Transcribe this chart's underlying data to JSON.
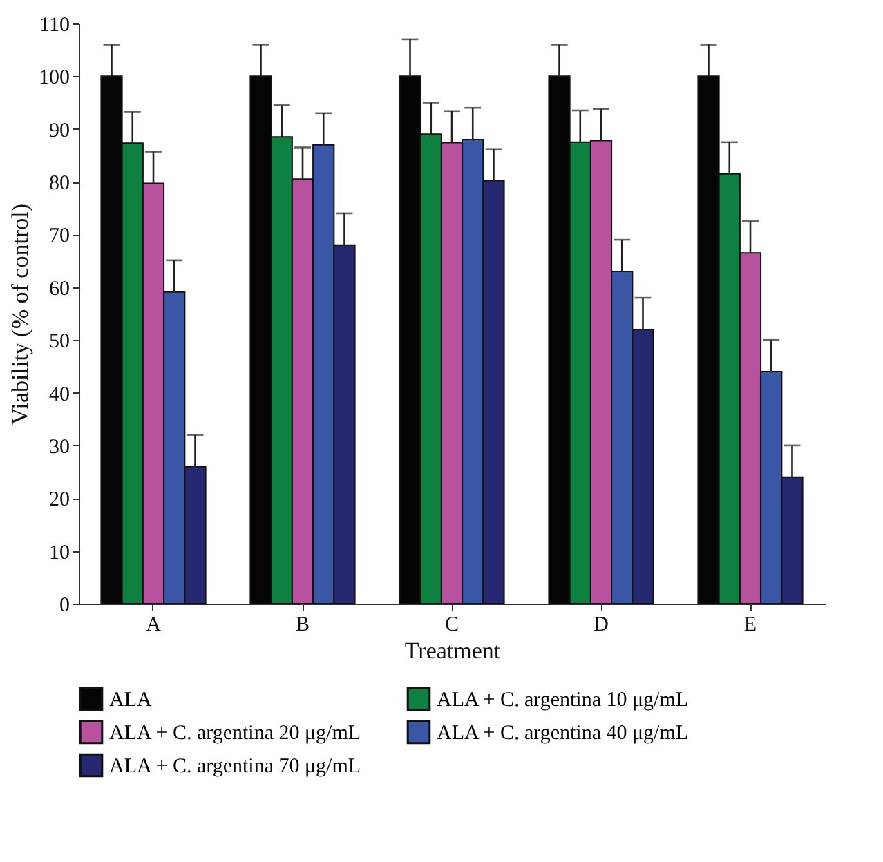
{
  "chart_data": {
    "type": "bar",
    "xlabel": "Treatment",
    "ylabel": "Viability (% of control)",
    "categories": [
      "A",
      "B",
      "C",
      "D",
      "E"
    ],
    "series": [
      {
        "name": "ALA",
        "color": "#050505",
        "values": [
          100,
          100,
          100,
          100,
          100
        ],
        "errors": [
          [
            100,
            106
          ],
          [
            100,
            106
          ],
          [
            100,
            107
          ],
          [
            100,
            106
          ],
          [
            100,
            106
          ]
        ]
      },
      {
        "name": "ALA + C. argentina 10 μg/mL",
        "color": "#0e8040",
        "values": [
          87.3,
          88.5,
          89,
          87.5,
          81.5
        ],
        "errors": [
          [
            87.3,
            93.3
          ],
          [
            88.5,
            94.5
          ],
          [
            89,
            95
          ],
          [
            87.5,
            93.5
          ],
          [
            81.5,
            87.5
          ]
        ]
      },
      {
        "name": "ALA + C. argentina 20 μg/mL",
        "color": "#b8529e",
        "values": [
          79.7,
          80.5,
          87.4,
          87.8,
          66.5
        ],
        "errors": [
          [
            79.7,
            85.7
          ],
          [
            80.5,
            86.5
          ],
          [
            87.4,
            93.4
          ],
          [
            87.8,
            93.8
          ],
          [
            66.5,
            72.5
          ]
        ]
      },
      {
        "name": "ALA + C. argentina 40 μg/mL",
        "color": "#3a56a6",
        "values": [
          59.1,
          87,
          88,
          63,
          44
        ],
        "errors": [
          [
            59.1,
            65.1
          ],
          [
            87,
            93
          ],
          [
            88,
            94
          ],
          [
            63,
            69
          ],
          [
            44,
            50
          ]
        ]
      },
      {
        "name": "ALA + C. argentina 70 μg/mL",
        "color": "#262872",
        "values": [
          26,
          68,
          80.2,
          52,
          24
        ],
        "errors": [
          [
            26,
            32
          ],
          [
            68,
            74
          ],
          [
            80.2,
            86.2
          ],
          [
            52,
            58
          ],
          [
            24,
            30
          ]
        ]
      }
    ],
    "ylim": [
      0,
      110
    ],
    "yticks": [
      0,
      10,
      20,
      30,
      40,
      50,
      60,
      70,
      80,
      90,
      100,
      110
    ],
    "grid": false,
    "legend": "bottom"
  }
}
